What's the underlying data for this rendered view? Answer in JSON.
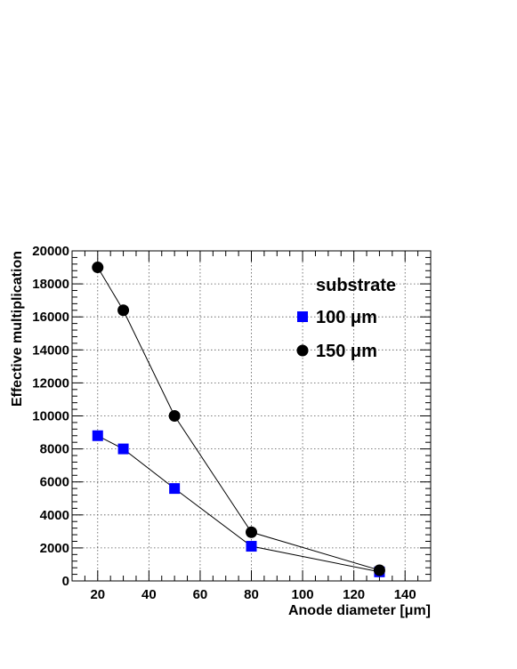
{
  "chart_data": {
    "type": "line",
    "xlabel": "Anode diameter [μm]",
    "ylabel": "Effective multiplication",
    "xlim": [
      10,
      150
    ],
    "ylim": [
      0,
      20000
    ],
    "x_ticks": [
      20,
      40,
      60,
      80,
      100,
      120,
      140
    ],
    "y_ticks": [
      0,
      2000,
      4000,
      6000,
      8000,
      10000,
      12000,
      14000,
      16000,
      18000,
      20000
    ],
    "grid": true,
    "legend": {
      "title": "substrate",
      "placement": "top-right"
    },
    "series": [
      {
        "name": "100 μm",
        "marker": "square",
        "color": "#0000ff",
        "x": [
          20,
          30,
          50,
          80,
          130
        ],
        "y": [
          8800,
          8000,
          5600,
          2100,
          550
        ]
      },
      {
        "name": "150 μm",
        "marker": "circle",
        "color": "#000000",
        "x": [
          20,
          30,
          50,
          80,
          130
        ],
        "y": [
          19000,
          16400,
          10000,
          2950,
          650
        ]
      }
    ]
  }
}
